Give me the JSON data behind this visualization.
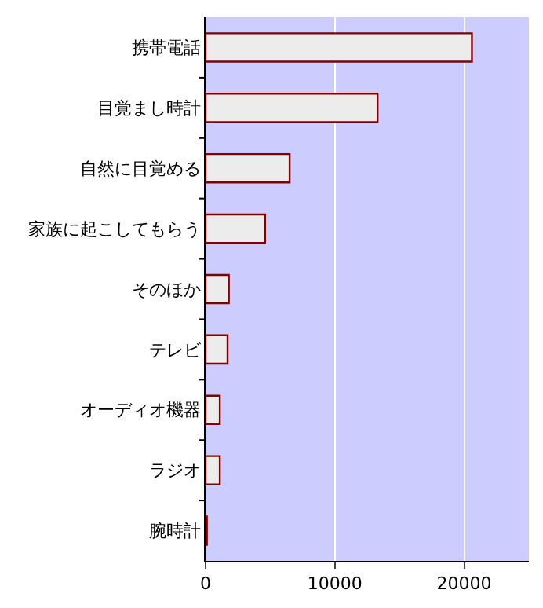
{
  "chart_data": {
    "type": "bar",
    "orientation": "horizontal",
    "categories": [
      "携帯電話",
      "目覚まし時計",
      "自然に目覚める",
      "家族に起こしてもらう",
      "そのほか",
      "テレビ",
      "オーディオ機器",
      "ラジオ",
      "腕時計"
    ],
    "values": [
      20600,
      13300,
      6500,
      4600,
      1800,
      1700,
      1100,
      1100,
      100
    ],
    "color": "#ececec",
    "xlim": [
      0,
      25000
    ],
    "xticks": [
      0,
      10000,
      20000
    ],
    "grid": "x",
    "legend": false
  }
}
